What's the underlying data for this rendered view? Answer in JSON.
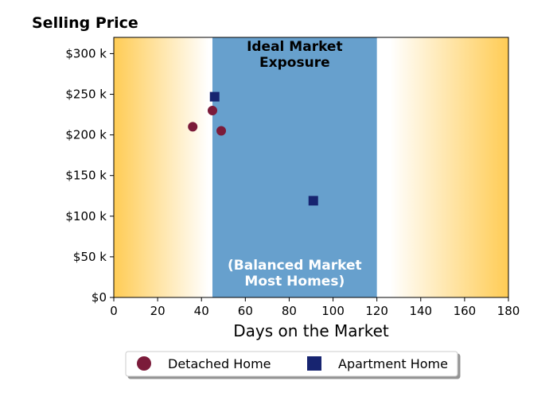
{
  "chart_data": {
    "type": "scatter",
    "title": "Selling Price",
    "xlabel": "Days on the Market",
    "ylabel": "",
    "xlim": [
      0,
      180
    ],
    "ylim": [
      0,
      320000
    ],
    "x_ticks": [
      0,
      20,
      40,
      60,
      80,
      100,
      120,
      140,
      160,
      180
    ],
    "x_tick_labels": [
      "0",
      "20",
      "40",
      "60",
      "80",
      "100",
      "120",
      "140",
      "160",
      "180"
    ],
    "y_ticks": [
      0,
      50000,
      100000,
      150000,
      200000,
      250000,
      300000
    ],
    "y_tick_labels": [
      "$0",
      "$50 k",
      "$100 k",
      "$150 k",
      "$200 k",
      "$250 k",
      "$300 k"
    ],
    "grid": false,
    "background_gradient": {
      "edge_color": "#FFCC55",
      "center_color": "#FFFFFF"
    },
    "ideal_region": {
      "x_range": [
        45,
        120
      ],
      "color": "#67A0CD",
      "top_label": [
        "Ideal Market",
        "Exposure"
      ],
      "top_label_color": "#000000",
      "bottom_label": [
        "(Balanced Market",
        "Most Homes)"
      ],
      "bottom_label_color": "#FFFFFF"
    },
    "series": [
      {
        "name": "Detached Home",
        "marker": "circle",
        "color": "#7B1B3A",
        "points": [
          {
            "x": 36,
            "y": 210000
          },
          {
            "x": 45,
            "y": 230000
          },
          {
            "x": 49,
            "y": 205000
          }
        ]
      },
      {
        "name": "Apartment Home",
        "marker": "square",
        "color": "#172470",
        "points": [
          {
            "x": 46,
            "y": 247000
          },
          {
            "x": 91,
            "y": 119000
          }
        ]
      }
    ],
    "legend": {
      "placement": "bottom-center",
      "columns": 2
    }
  }
}
